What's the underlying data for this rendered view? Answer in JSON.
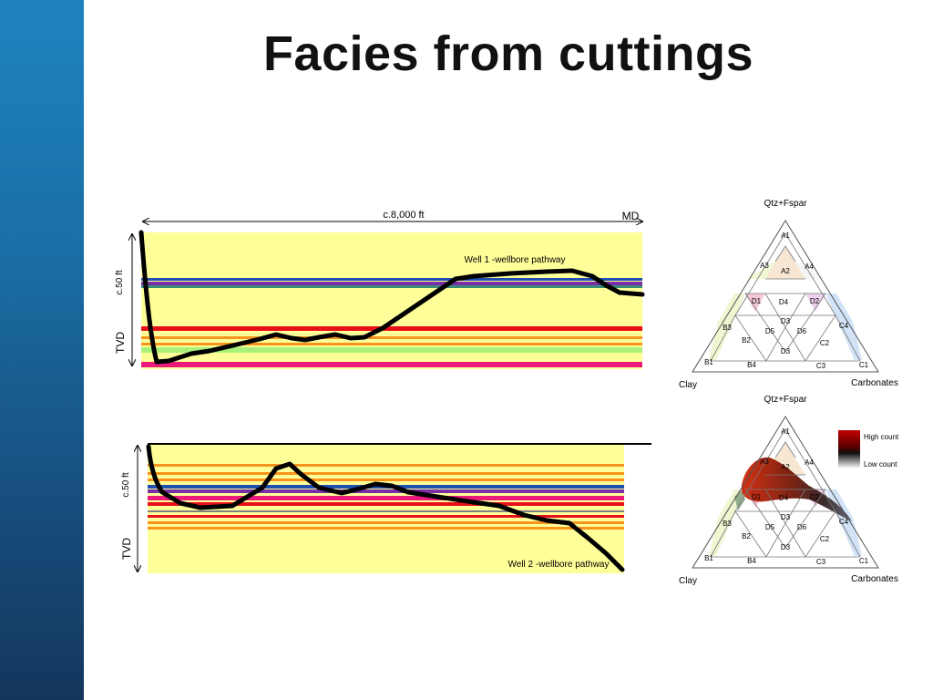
{
  "slide": {
    "title": "Facies from cuttings",
    "colors": {
      "sidebar_top": "#1f83c0",
      "sidebar_bottom": "#14365c",
      "panel_fill": "#ffff99"
    }
  },
  "well1": {
    "md_label": "c.8,000 ft",
    "md_axis_label": "MD",
    "tvd_label": "TVD",
    "tvd_scale": "c.50 ft",
    "pathway_label": "Well 1 -wellbore pathway"
  },
  "well2": {
    "tvd_label": "TVD",
    "tvd_scale": "c.50 ft",
    "pathway_label": "Well 2 -wellbore pathway"
  },
  "ternary": {
    "apex_top": "Qtz+Fspar",
    "corner_left": "Clay",
    "corner_right": "Carbonates",
    "facies_codes": [
      "A1",
      "A2",
      "A3",
      "A4",
      "B1",
      "B2",
      "B3",
      "B4",
      "C1",
      "C2",
      "C3",
      "C4",
      "D1",
      "D2",
      "D3",
      "D4",
      "D5",
      "D6"
    ],
    "legend_high": "High count",
    "legend_low": "Low count"
  }
}
